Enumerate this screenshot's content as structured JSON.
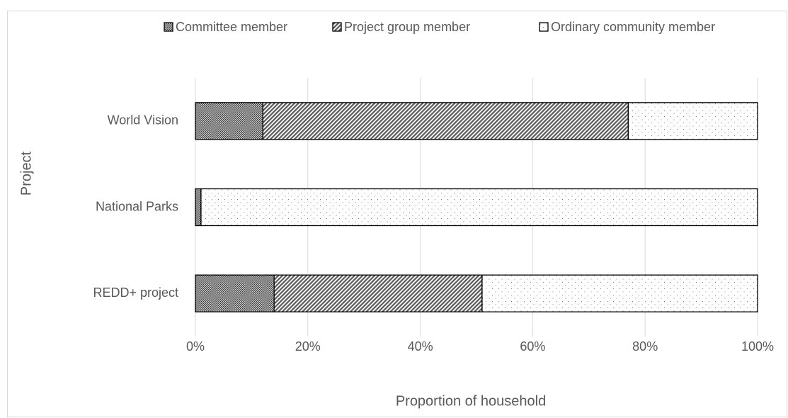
{
  "chart_data": {
    "type": "stacked_barh",
    "categories": [
      "World Vision",
      "National Parks",
      "REDD+ project"
    ],
    "series": [
      {
        "name": "Committee member",
        "color": "#404040",
        "values": [
          12,
          1,
          14
        ]
      },
      {
        "name": "Project group member",
        "color": "#595959",
        "values": [
          65,
          0,
          37
        ]
      },
      {
        "name": "Ordinary community member",
        "color": "#7f7f7f",
        "values": [
          23,
          99,
          49
        ]
      }
    ],
    "xlabel": "Proportion of household",
    "ylabel": "Project",
    "xlim": [
      0,
      100
    ],
    "xticks": [
      {
        "value": 0,
        "label": "0%"
      },
      {
        "value": 20,
        "label": "20%"
      },
      {
        "value": 40,
        "label": "40%"
      },
      {
        "value": 60,
        "label": "60%"
      },
      {
        "value": 80,
        "label": "80%"
      },
      {
        "value": 100,
        "label": "100%"
      }
    ],
    "grid": true,
    "legend": "top"
  }
}
